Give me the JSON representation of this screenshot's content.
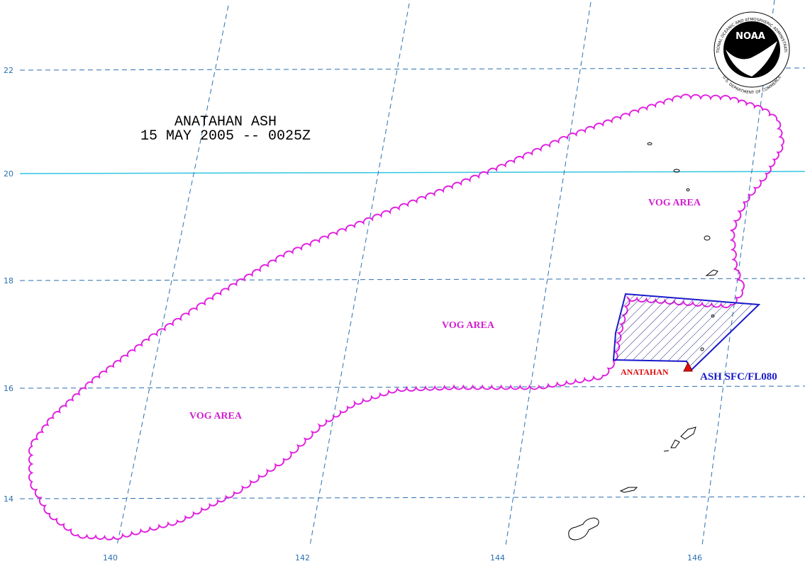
{
  "title": [
    "ANATAHAN ASH",
    "15 MAY 2005 -- 0025Z"
  ],
  "latitude_labels": [
    "22",
    "20",
    "18",
    "16",
    "14"
  ],
  "longitude_labels": [
    "140",
    "142",
    "144",
    "146"
  ],
  "area_labels": [
    "VOG AREA",
    "VOG AREA",
    "VOG AREA"
  ],
  "volcano": "ANATAHAN",
  "ash_label": "ASH SFC/FL080",
  "logo": {
    "name": "NOAA",
    "ring_top": "NATIONAL OCEANIC AND ATMOSPHERIC ADMINISTRATION",
    "ring_bottom": "U.S. DEPARTMENT OF COMMERCE"
  }
}
